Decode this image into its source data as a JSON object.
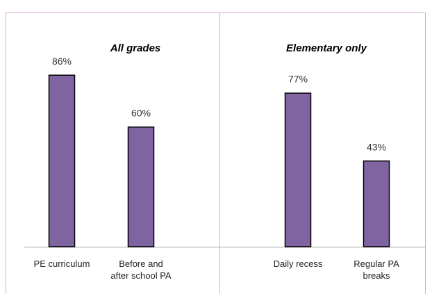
{
  "chart_data": [
    {
      "type": "bar",
      "title": "All grades",
      "categories": [
        "PE curriculum",
        "Before and\nafter school PA"
      ],
      "values": [
        86,
        60
      ],
      "value_labels": [
        "86%",
        "60%"
      ],
      "color": "#8064a2",
      "ylim": [
        0,
        100
      ]
    },
    {
      "type": "bar",
      "title": "Elementary only",
      "categories": [
        "Daily recess",
        "Regular PA\nbreaks"
      ],
      "values": [
        77,
        43
      ],
      "value_labels": [
        "77%",
        "43%"
      ],
      "color": "#8064a2",
      "ylim": [
        0,
        100
      ]
    }
  ]
}
